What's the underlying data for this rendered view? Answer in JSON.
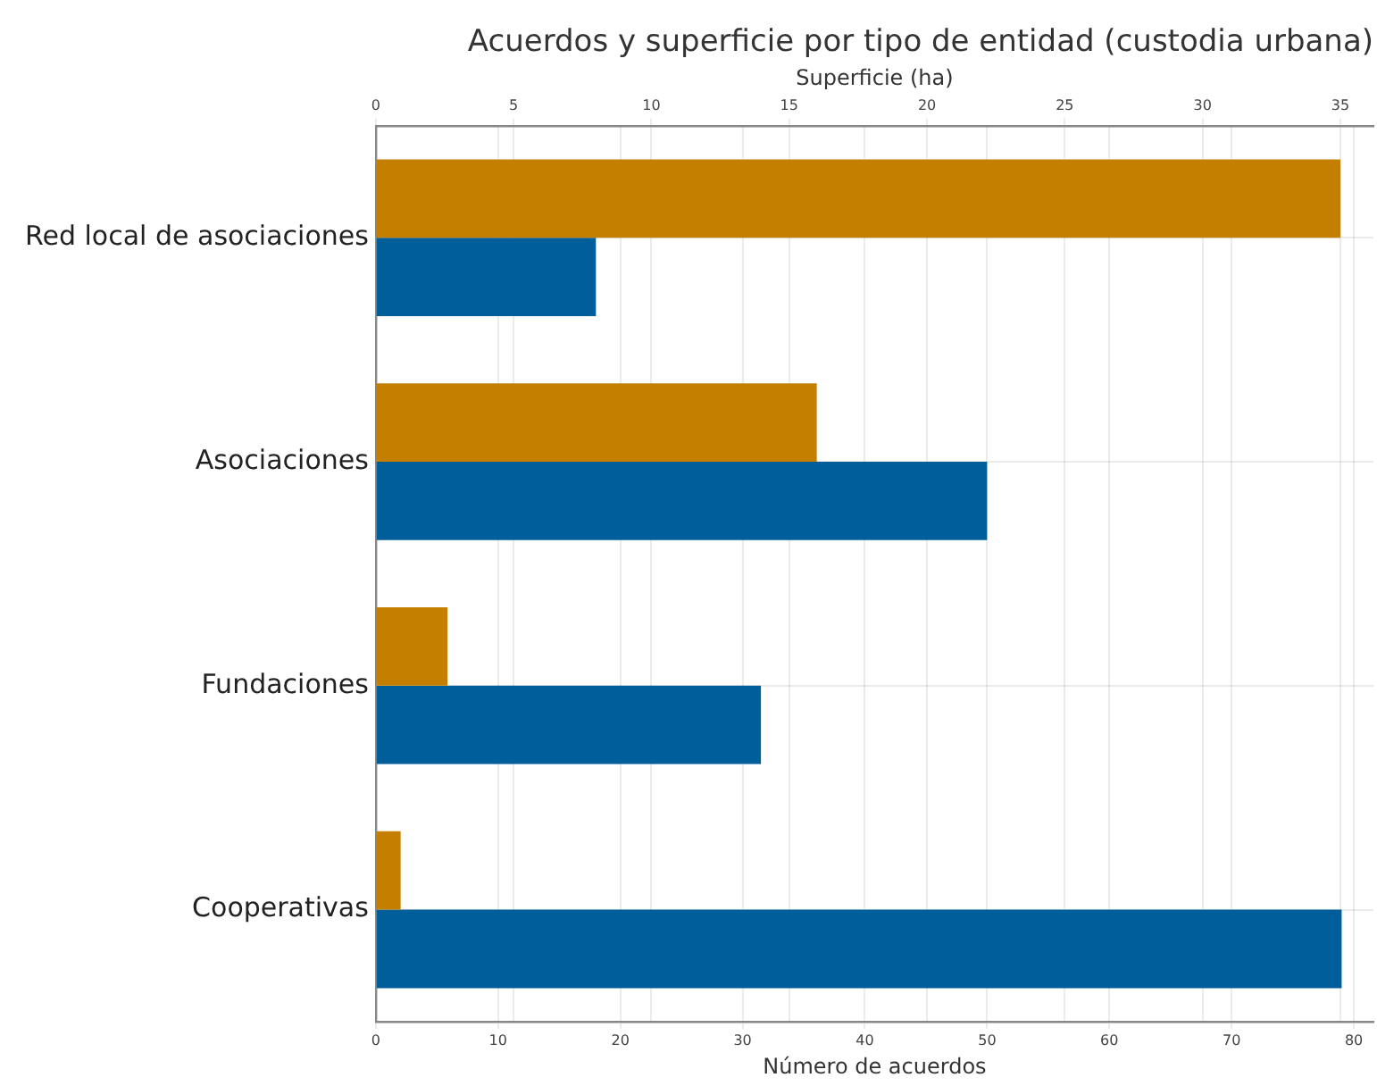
{
  "chart_data": {
    "type": "bar",
    "orientation": "horizontal",
    "title": "Acuerdos y superficie por tipo de entidad (custodia urbana)",
    "xlabel": "Número de acuerdos",
    "x2label": "Superficie (ha)",
    "categories": [
      "Red local de asociaciones",
      "Asociaciones",
      "Fundaciones",
      "Cooperativas"
    ],
    "series": [
      {
        "color": "#c47f00",
        "axis": "x2",
        "values": [
          35,
          16,
          2.6,
          0.9
        ]
      },
      {
        "color": "#005f9a",
        "values": [
          18,
          50,
          31.5,
          79
        ]
      }
    ],
    "xlim": [
      0,
      81.6
    ],
    "xticks": [
      0,
      10,
      20,
      30,
      40,
      50,
      60,
      70,
      80
    ],
    "x2lim": [
      0,
      36.2
    ],
    "x2ticks": [
      0,
      5,
      10,
      15,
      20,
      25,
      30,
      35
    ],
    "grid": true,
    "legend": false
  }
}
